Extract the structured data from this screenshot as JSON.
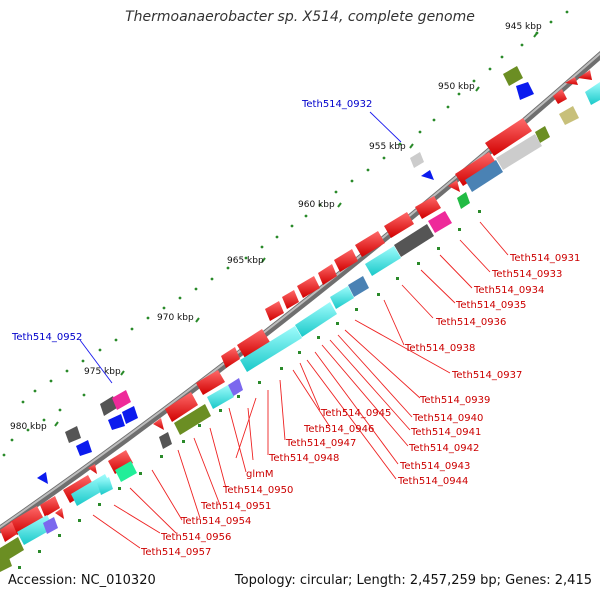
{
  "title": "Thermoanaerobacter sp. X514, complete genome",
  "footer": {
    "accession": "Accession: NC_010320",
    "summary": "Topology: circular; Length: 2,457,259 bp; Genes: 2,415"
  },
  "scale_ticks": [
    "945 kbp",
    "950 kbp",
    "955 kbp",
    "960 kbp",
    "965 kbp",
    "970 kbp",
    "975 kbp",
    "980 kbp"
  ],
  "labels_red": [
    "Teth514_0931",
    "Teth514_0933",
    "Teth514_0934",
    "Teth514_0935",
    "Teth514_0936",
    "Teth514_0938",
    "Teth514_0937",
    "Teth514_0939",
    "Teth514_0940",
    "Teth514_0941",
    "Teth514_0942",
    "Teth514_0943",
    "Teth514_0944",
    "Teth514_0945",
    "Teth514_0946",
    "Teth514_0947",
    "Teth514_0948",
    "glmM",
    "Teth514_0950",
    "Teth514_0951",
    "Teth514_0954",
    "Teth514_0956",
    "Teth514_0957"
  ],
  "labels_blue": [
    "Teth514_0932",
    "Teth514_0952"
  ],
  "colors": {
    "backbone": "#7a7a7a",
    "cds": "#ee1111",
    "cog_cyan": "#22e6e6",
    "cog_olive": "#6b8e23",
    "cog_darkgray": "#555555",
    "cog_blue": "#0b1bee",
    "cog_steel": "#4a82b4",
    "cog_pink": "#ee2a9a",
    "cog_green": "#22bb44",
    "cog_lightgray": "#cccccc",
    "cog_khaki": "#c8c07a",
    "dots": "#2a8a2a"
  }
}
